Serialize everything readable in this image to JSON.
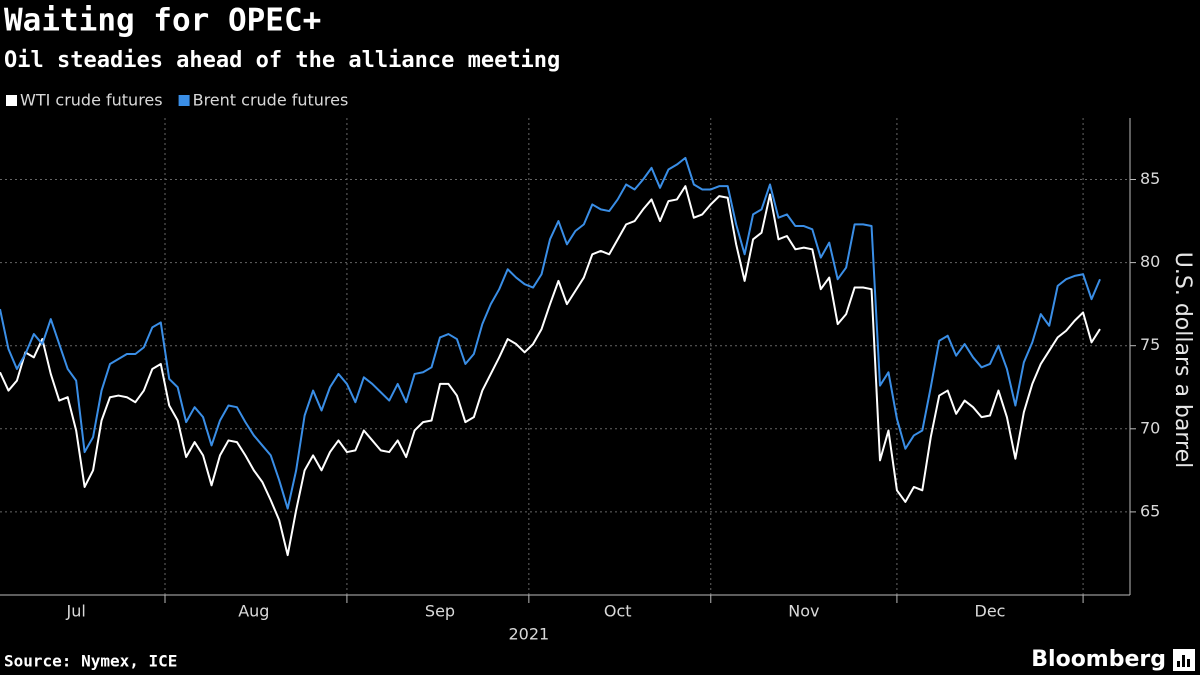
{
  "chart_data": {
    "type": "line",
    "title": "Waiting for OPEC+",
    "subtitle": "Oil steadies ahead of the alliance meeting",
    "ylabel": "U.S. dollars a barrel",
    "xlabel": "2021",
    "source": "Source: Nymex, ICE",
    "logo": "Bloomberg",
    "categories": [
      null,
      null,
      null,
      null,
      null,
      null,
      null,
      null,
      null,
      "Jul",
      null,
      null,
      null,
      null,
      null,
      null,
      null,
      null,
      null,
      null,
      null,
      null,
      null,
      null,
      null,
      null,
      null,
      null,
      null,
      null,
      "Aug",
      null,
      null,
      null,
      null,
      null,
      null,
      null,
      null,
      null,
      null,
      null,
      null,
      null,
      null,
      null,
      null,
      null,
      null,
      null,
      null,
      null,
      "Sep",
      null,
      null,
      null,
      null,
      null,
      null,
      null,
      null,
      null,
      null,
      null,
      null,
      null,
      null,
      null,
      null,
      null,
      null,
      null,
      null,
      "Oct",
      null,
      null,
      null,
      null,
      null,
      null,
      null,
      null,
      null,
      null,
      null,
      null,
      null,
      null,
      null,
      null,
      null,
      null,
      null,
      null,
      null,
      "Nov",
      null,
      null,
      null,
      null,
      null,
      null,
      null,
      null,
      null,
      null,
      null,
      null,
      null,
      null,
      null,
      null,
      null,
      null,
      null,
      null,
      null,
      "Dec",
      null,
      null,
      null,
      null,
      null,
      null,
      null,
      null,
      null,
      null,
      null,
      null,
      null
    ],
    "series": [
      {
        "name": "WTI crude futures",
        "color": "#ffffff",
        "values": [
          73.4,
          72.3,
          72.9,
          74.6,
          74.3,
          75.4,
          73.3,
          71.7,
          71.9,
          69.9,
          66.5,
          67.5,
          70.5,
          71.9,
          72.0,
          71.9,
          71.6,
          72.3,
          73.6,
          73.9,
          71.4,
          70.5,
          68.3,
          69.2,
          68.4,
          66.6,
          68.4,
          69.3,
          69.2,
          68.4,
          67.5,
          66.8,
          65.7,
          64.5,
          62.4,
          65.1,
          67.5,
          68.4,
          67.5,
          68.6,
          69.3,
          68.6,
          68.7,
          69.9,
          69.3,
          68.7,
          68.6,
          69.3,
          68.3,
          69.9,
          70.4,
          70.5,
          72.7,
          72.7,
          72.0,
          70.4,
          70.7,
          72.3,
          73.3,
          74.3,
          75.4,
          75.1,
          74.6,
          75.1,
          76.0,
          77.5,
          78.9,
          77.5,
          78.3,
          79.1,
          80.5,
          80.7,
          80.5,
          81.4,
          82.3,
          82.5,
          83.2,
          83.8,
          82.5,
          83.7,
          83.8,
          84.6,
          82.7,
          82.9,
          83.5,
          84.0,
          83.9,
          81.1,
          78.9,
          81.4,
          81.8,
          84.1,
          81.4,
          81.6,
          80.8,
          80.9,
          80.8,
          78.4,
          79.1,
          76.3,
          76.9,
          78.5,
          78.5,
          78.4,
          68.1,
          69.9,
          66.3,
          65.6,
          66.5,
          66.3,
          69.5,
          72.0,
          72.3,
          70.9,
          71.7,
          71.3,
          70.7,
          70.8,
          72.3,
          70.7,
          68.2,
          71.0,
          72.7,
          73.9,
          74.7,
          75.5,
          75.9,
          76.5,
          77.0,
          75.2,
          76.0
        ]
      },
      {
        "name": "Brent crude futures",
        "color": "#3a8ee6",
        "values": [
          77.2,
          74.8,
          73.6,
          74.5,
          75.7,
          75.1,
          76.6,
          75.1,
          73.6,
          72.9,
          68.6,
          69.5,
          72.3,
          73.9,
          74.2,
          74.5,
          74.5,
          74.9,
          76.1,
          76.4,
          73.0,
          72.5,
          70.4,
          71.3,
          70.7,
          69.0,
          70.5,
          71.4,
          71.3,
          70.4,
          69.6,
          69.0,
          68.4,
          66.9,
          65.2,
          67.5,
          70.8,
          72.3,
          71.1,
          72.5,
          73.3,
          72.7,
          71.6,
          73.1,
          72.7,
          72.2,
          71.7,
          72.7,
          71.6,
          73.3,
          73.4,
          73.7,
          75.5,
          75.7,
          75.4,
          73.9,
          74.5,
          76.3,
          77.5,
          78.4,
          79.6,
          79.1,
          78.7,
          78.5,
          79.3,
          81.4,
          82.5,
          81.1,
          81.9,
          82.3,
          83.5,
          83.2,
          83.1,
          83.8,
          84.7,
          84.4,
          85.0,
          85.7,
          84.5,
          85.6,
          85.9,
          86.3,
          84.7,
          84.4,
          84.4,
          84.6,
          84.6,
          82.3,
          80.5,
          82.9,
          83.2,
          84.7,
          82.7,
          82.9,
          82.2,
          82.2,
          82.0,
          80.3,
          81.2,
          79.0,
          79.7,
          82.3,
          82.3,
          82.2,
          72.6,
          73.4,
          70.6,
          68.8,
          69.6,
          69.9,
          72.5,
          75.3,
          75.6,
          74.4,
          75.1,
          74.3,
          73.7,
          73.9,
          75.0,
          73.6,
          71.4,
          74.0,
          75.2,
          76.9,
          76.2,
          78.6,
          79.0,
          79.2,
          79.3,
          77.8,
          79.0
        ]
      }
    ],
    "ylim": [
      60,
      88.7
    ],
    "yticks": [
      65,
      70,
      75,
      80,
      85
    ],
    "grid": true,
    "legend": "top-left"
  }
}
